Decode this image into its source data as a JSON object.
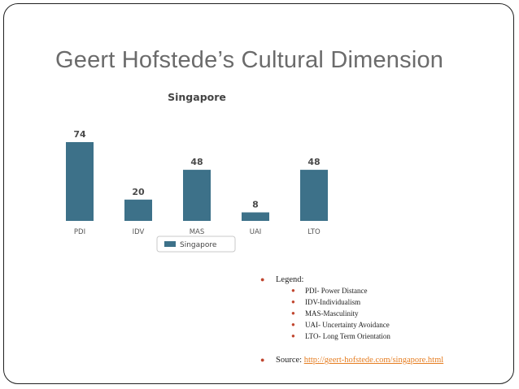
{
  "slide": {
    "title": "Geert Hofstede’s Cultural Dimension"
  },
  "colors": {
    "bar": "#3d7189",
    "bullet": "#c0452e",
    "link": "#e67e22"
  },
  "chart_data": {
    "type": "bar",
    "title": "Singapore",
    "categories": [
      "PDI",
      "IDV",
      "MAS",
      "UAI",
      "LTO"
    ],
    "series": [
      {
        "name": "Singapore",
        "values": [
          74,
          20,
          48,
          8,
          48
        ]
      }
    ],
    "ylim": [
      0,
      74
    ],
    "grid": false,
    "legend": "bottom-center"
  },
  "notes": {
    "legend_heading": "Legend:",
    "items": [
      "PDI- Power Distance",
      "IDV-Individualism",
      "MAS-Masculinity",
      "UAI- Uncertainty Avoidance",
      "LTO- Long Term Orientation"
    ],
    "source_label": "Source:",
    "source_link": "http://geert-hofstede.com/singapore.html"
  }
}
